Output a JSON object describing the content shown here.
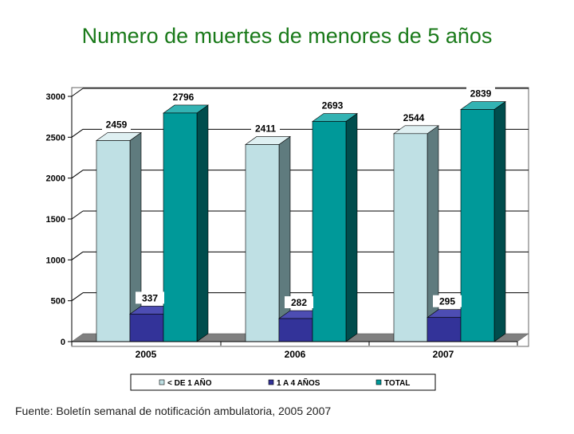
{
  "title": "Numero de muertes de menores de 5 años",
  "footer": "Fuente: Boletín semanal de notificación ambulatoria, 2005 2007",
  "colors": {
    "title": "#1a7a1a",
    "series_front": [
      "#bfe0e4",
      "#333399",
      "#009999"
    ],
    "series_side": [
      "#5f7b7e",
      "#1a1a4d",
      "#004d4d"
    ],
    "series_top": [
      "#dff0f2",
      "#4d4db3",
      "#33b3b3"
    ],
    "floor": "#808080"
  },
  "chart_data": {
    "type": "bar",
    "title": "Numero de muertes de menores de 5 años",
    "categories": [
      "2005",
      "2006",
      "2007"
    ],
    "series": [
      {
        "name": "< DE 1 AÑO",
        "values": [
          2459,
          2411,
          2544
        ]
      },
      {
        "name": "1 A 4 AÑOS",
        "values": [
          337,
          282,
          295
        ]
      },
      {
        "name": "TOTAL",
        "values": [
          2796,
          2693,
          2839
        ]
      }
    ],
    "ylim": [
      0,
      3000
    ],
    "yticks": [
      "0",
      "500",
      "1000",
      "1500",
      "2000",
      "2500",
      "3000"
    ],
    "xlabel": "",
    "ylabel": "",
    "grid": true,
    "legend_position": "bottom"
  }
}
